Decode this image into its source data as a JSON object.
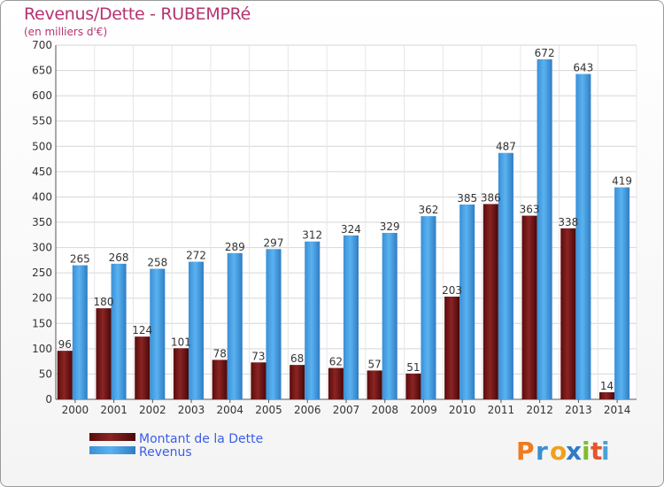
{
  "header": {
    "title": "Revenus/Dette - RUBEMPRé",
    "subtitle": "(en milliers d'€)"
  },
  "brand": {
    "logo_text": "Proxiti",
    "letters": [
      {
        "char": "P",
        "color": "#f07b1c"
      },
      {
        "char": "r",
        "color": "#3a8fd1"
      },
      {
        "char": "o",
        "color": "#f0a01c"
      },
      {
        "char": "x",
        "color": "#2d7cc5"
      },
      {
        "char": "i",
        "color": "#7fbd2c"
      },
      {
        "char": "t",
        "color": "#e3562a"
      },
      {
        "char": "i",
        "color": "#4aa3d8"
      }
    ]
  },
  "colors": {
    "dette": "#7b1a1a",
    "revenus": "#4aa3e8",
    "legend_text": "#3b5ee8",
    "title": "#b5336f"
  },
  "chart_data": {
    "type": "bar",
    "title": "Revenus/Dette - RUBEMPRé",
    "subtitle": "(en milliers d'€)",
    "categories": [
      "2000",
      "2001",
      "2002",
      "2003",
      "2004",
      "2005",
      "2006",
      "2007",
      "2008",
      "2009",
      "2010",
      "2011",
      "2012",
      "2013",
      "2014"
    ],
    "series": [
      {
        "name": "Montant de la Dette",
        "values": [
          96,
          180,
          124,
          101,
          78,
          73,
          68,
          62,
          57,
          51,
          203,
          386,
          363,
          338,
          14
        ]
      },
      {
        "name": "Revenus",
        "values": [
          265,
          268,
          258,
          272,
          289,
          297,
          312,
          324,
          329,
          362,
          385,
          487,
          672,
          643,
          419
        ]
      }
    ],
    "ylim": [
      0,
      700
    ],
    "yticks": [
      0,
      50,
      100,
      150,
      200,
      250,
      300,
      350,
      400,
      450,
      500,
      550,
      600,
      650,
      700
    ],
    "grid": true,
    "legend": "bottom-left"
  }
}
